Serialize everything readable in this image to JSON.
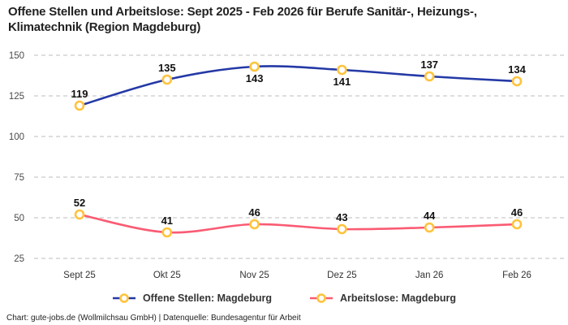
{
  "title_lines": [
    "Offene Stellen und Arbeitslose: Sept 2025 - Feb 2026 für Berufe Sanitär-, Heizungs-,",
    "Klimatechnik (Region Magdeburg)"
  ],
  "footer": "Chart: gute-jobs.de (Wollmilchsau GmbH) | Datenquelle: Bundesagentur für Arbeit",
  "chart_data": {
    "type": "line",
    "title": "Offene Stellen und Arbeitslose: Sept 2025 - Feb 2026 für Berufe Sanitär-, Heizungs-, Klimatechnik (Region Magdeburg)",
    "categories": [
      "Sept 25",
      "Okt 25",
      "Nov 25",
      "Dez 25",
      "Jan 26",
      "Feb 26"
    ],
    "series": [
      {
        "name": "Offene Stellen: Magdeburg",
        "values": [
          119,
          135,
          143,
          141,
          137,
          134
        ],
        "color": "#2439a6",
        "label_positions": [
          "above",
          "above",
          "below",
          "below",
          "above",
          "above"
        ]
      },
      {
        "name": "Arbeitslose: Magdeburg",
        "values": [
          52,
          41,
          46,
          43,
          44,
          46
        ],
        "color": "#fa5b73",
        "label_positions": [
          "above",
          "above",
          "above",
          "above",
          "above",
          "above"
        ]
      }
    ],
    "y_ticks": [
      25,
      50,
      75,
      100,
      125,
      150
    ],
    "ylim": [
      25,
      150
    ],
    "grid": "horizontal-dashed",
    "grid_color": "#c9c9c9",
    "tick_color": "#4a4a4a",
    "data_label_color": "#111111",
    "marker": {
      "fill": "#ffffff",
      "stroke": "#ffc33c"
    },
    "legend_position": "bottom"
  }
}
